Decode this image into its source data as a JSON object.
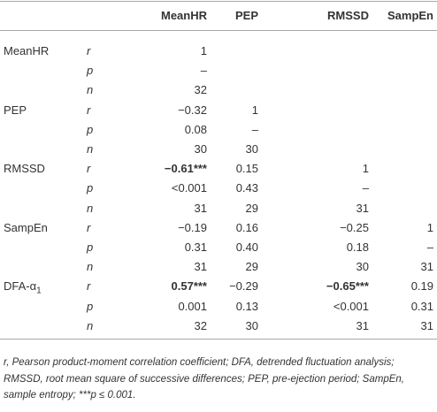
{
  "table": {
    "header": [
      "MeanHR",
      "PEP",
      "RMSSD",
      "SampEn"
    ],
    "rows": [
      {
        "variable": "MeanHR",
        "stat": "r",
        "values": [
          "1",
          null,
          null,
          null
        ]
      },
      {
        "stat": "p",
        "values": [
          "–",
          null,
          null,
          null
        ]
      },
      {
        "stat": "n",
        "values": [
          "32",
          null,
          null,
          null
        ]
      },
      {
        "variable": "PEP",
        "stat": "r",
        "values": [
          "−0.32",
          "1",
          null,
          null
        ]
      },
      {
        "stat": "p",
        "values": [
          "0.08",
          "–",
          null,
          null
        ]
      },
      {
        "stat": "n",
        "values": [
          "30",
          "30",
          null,
          null
        ]
      },
      {
        "variable": "RMSSD",
        "stat": "r",
        "values": [
          "−0.61***",
          "0.15",
          "1",
          null
        ],
        "bold": [
          0
        ]
      },
      {
        "stat": "p",
        "values": [
          "<0.001",
          "0.43",
          "–",
          null
        ]
      },
      {
        "stat": "n",
        "values": [
          "31",
          "29",
          "31",
          null
        ]
      },
      {
        "variable": "SampEn",
        "stat": "r",
        "values": [
          "−0.19",
          "0.16",
          "−0.25",
          "1"
        ]
      },
      {
        "stat": "p",
        "values": [
          "0.31",
          "0.40",
          "0.18",
          "–"
        ]
      },
      {
        "stat": "n",
        "values": [
          "31",
          "29",
          "30",
          "31"
        ]
      },
      {
        "variable": "DFA-α",
        "variable_subscript": "1",
        "stat": "r",
        "values": [
          "0.57***",
          "−0.29",
          "−0.65***",
          "0.19"
        ],
        "bold": [
          0,
          2
        ]
      },
      {
        "stat": "p",
        "values": [
          "0.001",
          "0.13",
          "<0.001",
          "0.31"
        ]
      },
      {
        "stat": "n",
        "values": [
          "32",
          "30",
          "31",
          "31"
        ]
      }
    ]
  },
  "footnote": [
    "r, Pearson product-moment correlation coefficient; DFA, detrended fluctuation analysis;",
    "RMSSD, root mean square of successive differences; PEP, pre-ejection period; SampEn,",
    "sample entropy; ***p ≤ 0.001."
  ]
}
